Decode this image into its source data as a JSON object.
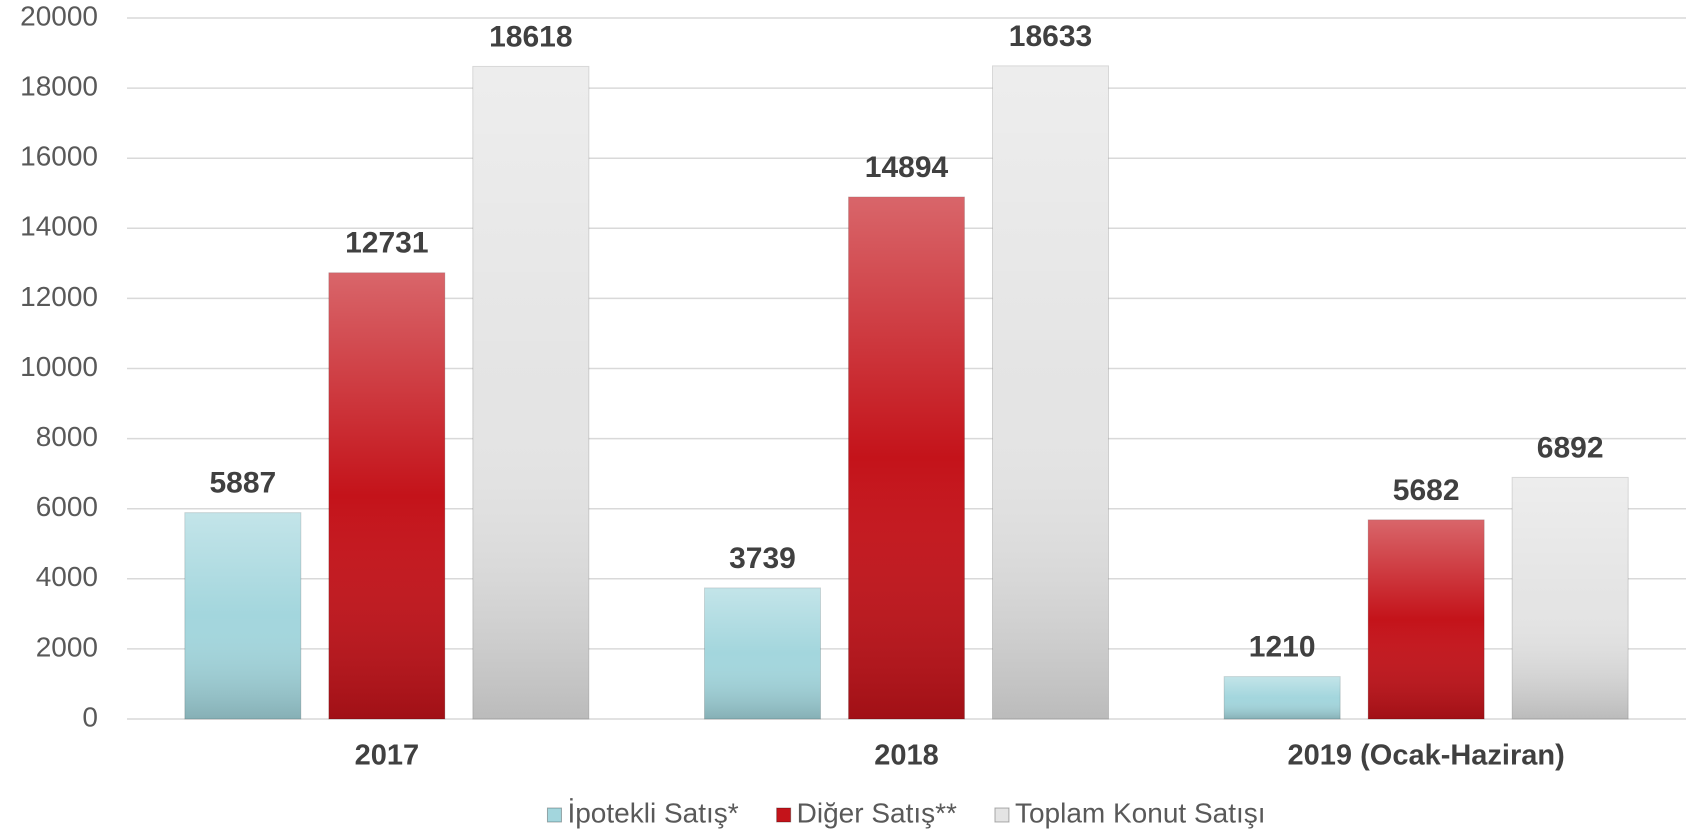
{
  "chart_data": {
    "type": "bar",
    "categories": [
      "2017",
      "2018",
      "2019 (Ocak-Haziran)"
    ],
    "series": [
      {
        "name": "İpotekli Satış*",
        "color": "#a3d6dd",
        "values": [
          5887,
          3739,
          1210
        ]
      },
      {
        "name": "Diğer Satış**",
        "color": "#c4131a",
        "values": [
          12731,
          14894,
          5682
        ]
      },
      {
        "name": "Toplam Konut Satışı",
        "color": "#e4e4e4",
        "values": [
          18618,
          18633,
          6892
        ]
      }
    ],
    "ylim": [
      0,
      20000
    ],
    "yticks": [
      0,
      2000,
      4000,
      6000,
      8000,
      10000,
      12000,
      14000,
      16000,
      18000,
      20000
    ],
    "grid": true,
    "legend": "bottom",
    "data_labels": true
  }
}
